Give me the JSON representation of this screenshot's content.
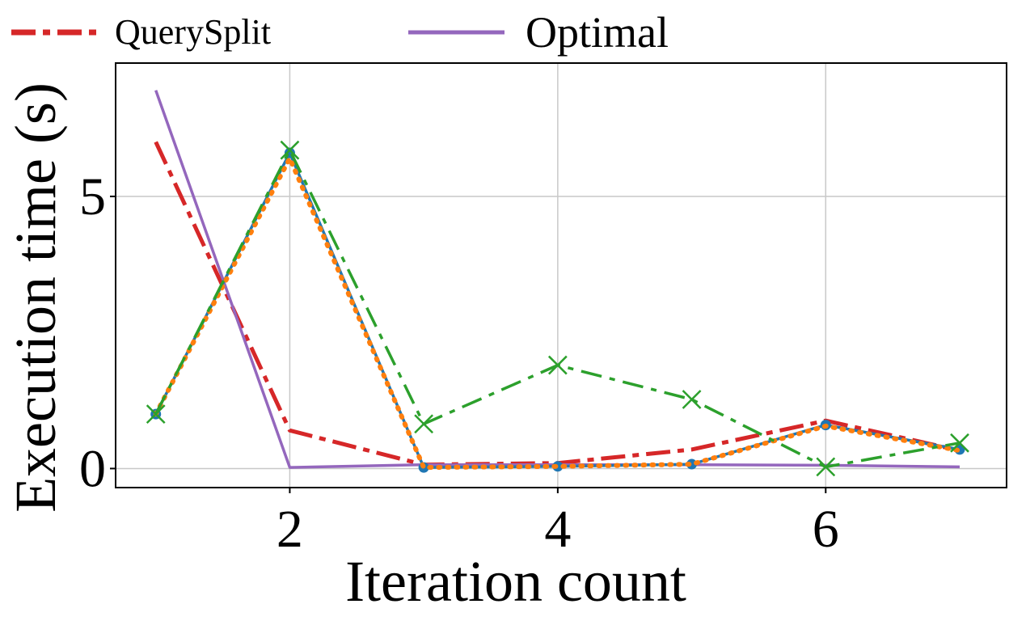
{
  "chart_data": {
    "type": "line",
    "title": "",
    "xlabel": "Iteration count",
    "ylabel": "Execution time (s)",
    "xlim": [
      0.7,
      7.35
    ],
    "ylim": [
      -0.35,
      7.45
    ],
    "xticks": [
      2,
      4,
      6
    ],
    "yticks": [
      0,
      5
    ],
    "grid": true,
    "legend_position": "top",
    "x": [
      1,
      2,
      3,
      4,
      5,
      6,
      7
    ],
    "series": [
      {
        "name": "QuerySplit",
        "show_in_legend": true,
        "color": "#d62728",
        "style": "dashdot",
        "marker": "none",
        "values": [
          6.0,
          0.7,
          0.07,
          0.1,
          0.35,
          0.88,
          0.33
        ]
      },
      {
        "name": "Optimal",
        "show_in_legend": true,
        "color": "#9467bd",
        "style": "solid",
        "marker": "none",
        "values": [
          6.95,
          0.02,
          0.07,
          0.07,
          0.07,
          0.06,
          0.03
        ]
      },
      {
        "name": "series-blue",
        "show_in_legend": false,
        "color": "#1f77b4",
        "style": "solid",
        "marker": "circle",
        "values": [
          1.0,
          5.8,
          0.02,
          0.04,
          0.08,
          0.8,
          0.35
        ]
      },
      {
        "name": "series-orange",
        "show_in_legend": false,
        "color": "#ff7f0e",
        "style": "dotted",
        "marker": "none",
        "values": [
          1.0,
          5.7,
          0.02,
          0.04,
          0.08,
          0.78,
          0.33
        ]
      },
      {
        "name": "series-green",
        "show_in_legend": false,
        "color": "#2ca02c",
        "style": "dashdot",
        "marker": "x",
        "values": [
          1.0,
          5.85,
          0.82,
          1.9,
          1.27,
          0.03,
          0.47
        ]
      }
    ]
  }
}
